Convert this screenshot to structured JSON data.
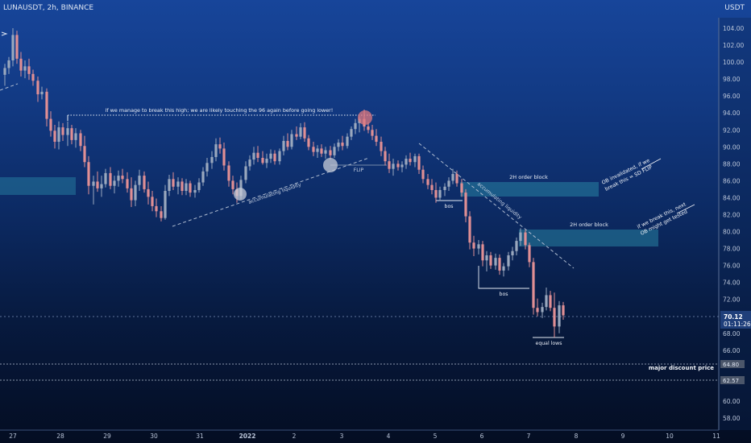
{
  "header": {
    "symbol": "LUNAUSDT, 2h, BINANCE",
    "currency": "USDT"
  },
  "chart_data": {
    "type": "candlestick",
    "y_ticks": [
      104,
      102,
      100,
      98,
      96,
      94,
      92,
      90,
      88,
      86,
      84,
      82,
      80,
      78,
      76,
      74,
      72,
      68,
      66,
      60,
      58
    ],
    "y_tick_labels": [
      "104.00",
      "102.00",
      "100.00",
      "98.00",
      "96.00",
      "94.00",
      "92.00",
      "90.00",
      "88.00",
      "86.00",
      "84.00",
      "82.00",
      "80.00",
      "78.00",
      "76.00",
      "74.00",
      "72.00",
      "68.00",
      "66.00",
      "60.00",
      "58.00"
    ],
    "ylim": [
      56.5,
      105.5
    ],
    "x_labels": [
      "27",
      "28",
      "29",
      "30",
      "31",
      "2022",
      "2",
      "3",
      "4",
      "5",
      "6",
      "7",
      "8",
      "9",
      "10",
      "11"
    ],
    "current_price": {
      "price": "70.12",
      "countdown": "01:11:26",
      "value": 70.12
    },
    "discount_levels": [
      {
        "label": "64.80",
        "value": 64.8
      },
      {
        "label": "62.57",
        "value": 62.57
      }
    ],
    "annotations": {
      "high_note": "if we manage to break this high; we are likely touching the 96 again before going lower!",
      "accum_left": "accumulating liquidity",
      "accum_right": "accumulating liquidity",
      "flip": "FLIP",
      "ob1": "2H order block",
      "ob2": "2H order block",
      "bos1": "bos",
      "bos2": "bos",
      "equal_lows": "equal lows",
      "major_discount": "major discount price",
      "note_top_1": "OB invalidated, if we",
      "note_top_2": "break this = SD FLIP",
      "note_mid_1": "if we break this, next",
      "note_mid_2": "OB might get tested"
    },
    "colors": {
      "up": "#9aa8be",
      "down": "#e08f94",
      "zone": "#2a8aa8",
      "bg_top": "#17459a",
      "bg_bottom": "#040d22"
    },
    "candles": [
      {
        "x": 6,
        "o": 98.5,
        "h": 99.8,
        "l": 97.2,
        "c": 99.3
      },
      {
        "x": 11,
        "o": 99.3,
        "h": 100.6,
        "l": 98.6,
        "c": 100.2
      },
      {
        "x": 16,
        "o": 100.2,
        "h": 104.0,
        "l": 99.5,
        "c": 103.2
      },
      {
        "x": 21,
        "o": 103.2,
        "h": 103.7,
        "l": 99.8,
        "c": 100.4
      },
      {
        "x": 26,
        "o": 100.4,
        "h": 101.2,
        "l": 98.3,
        "c": 99.0
      },
      {
        "x": 31,
        "o": 99.0,
        "h": 100.2,
        "l": 98.1,
        "c": 99.5
      },
      {
        "x": 36,
        "o": 99.5,
        "h": 100.4,
        "l": 97.9,
        "c": 98.6
      },
      {
        "x": 41,
        "o": 98.6,
        "h": 99.1,
        "l": 97.2,
        "c": 97.8
      },
      {
        "x": 47,
        "o": 97.8,
        "h": 98.3,
        "l": 95.3,
        "c": 96.2
      },
      {
        "x": 52,
        "o": 96.2,
        "h": 97.1,
        "l": 95.6,
        "c": 96.5
      },
      {
        "x": 58,
        "o": 96.5,
        "h": 96.9,
        "l": 92.4,
        "c": 93.3
      },
      {
        "x": 63,
        "o": 93.3,
        "h": 94.2,
        "l": 91.2,
        "c": 91.9
      },
      {
        "x": 68,
        "o": 91.9,
        "h": 92.6,
        "l": 89.8,
        "c": 90.6
      },
      {
        "x": 73,
        "o": 90.6,
        "h": 93.0,
        "l": 89.7,
        "c": 92.3
      },
      {
        "x": 78,
        "o": 92.3,
        "h": 92.8,
        "l": 90.7,
        "c": 91.4
      },
      {
        "x": 84,
        "o": 91.4,
        "h": 93.0,
        "l": 90.1,
        "c": 92.2
      },
      {
        "x": 89,
        "o": 92.2,
        "h": 92.6,
        "l": 90.3,
        "c": 90.8
      },
      {
        "x": 94,
        "o": 90.8,
        "h": 92.2,
        "l": 89.9,
        "c": 91.6
      },
      {
        "x": 100,
        "o": 91.6,
        "h": 92.0,
        "l": 89.5,
        "c": 90.1
      },
      {
        "x": 105,
        "o": 90.1,
        "h": 91.3,
        "l": 87.6,
        "c": 88.2
      },
      {
        "x": 110,
        "o": 88.2,
        "h": 88.9,
        "l": 84.4,
        "c": 85.4
      },
      {
        "x": 116,
        "o": 85.4,
        "h": 86.6,
        "l": 83.2,
        "c": 85.9
      },
      {
        "x": 121,
        "o": 85.9,
        "h": 87.1,
        "l": 84.7,
        "c": 85.1
      },
      {
        "x": 126,
        "o": 85.1,
        "h": 86.6,
        "l": 84.1,
        "c": 85.6
      },
      {
        "x": 131,
        "o": 85.6,
        "h": 87.4,
        "l": 85.2,
        "c": 86.9
      },
      {
        "x": 137,
        "o": 86.9,
        "h": 87.6,
        "l": 85.0,
        "c": 85.4
      },
      {
        "x": 142,
        "o": 85.4,
        "h": 86.6,
        "l": 84.5,
        "c": 86.0
      },
      {
        "x": 147,
        "o": 86.0,
        "h": 87.2,
        "l": 85.3,
        "c": 86.6
      },
      {
        "x": 152,
        "o": 86.6,
        "h": 87.4,
        "l": 85.7,
        "c": 86.2
      },
      {
        "x": 158,
        "o": 86.2,
        "h": 87.0,
        "l": 84.6,
        "c": 85.1
      },
      {
        "x": 163,
        "o": 85.1,
        "h": 86.4,
        "l": 82.9,
        "c": 83.7
      },
      {
        "x": 168,
        "o": 83.7,
        "h": 86.0,
        "l": 83.0,
        "c": 85.5
      },
      {
        "x": 173,
        "o": 85.5,
        "h": 87.3,
        "l": 84.8,
        "c": 86.6
      },
      {
        "x": 179,
        "o": 86.6,
        "h": 87.1,
        "l": 84.6,
        "c": 85.0
      },
      {
        "x": 184,
        "o": 85.0,
        "h": 85.9,
        "l": 83.2,
        "c": 84.1
      },
      {
        "x": 189,
        "o": 84.1,
        "h": 84.8,
        "l": 82.4,
        "c": 83.0
      },
      {
        "x": 194,
        "o": 83.0,
        "h": 83.9,
        "l": 81.7,
        "c": 82.4
      },
      {
        "x": 200,
        "o": 82.4,
        "h": 83.0,
        "l": 81.2,
        "c": 81.6
      },
      {
        "x": 205,
        "o": 81.6,
        "h": 85.5,
        "l": 81.4,
        "c": 84.8
      },
      {
        "x": 210,
        "o": 84.8,
        "h": 86.7,
        "l": 84.2,
        "c": 86.2
      },
      {
        "x": 215,
        "o": 86.2,
        "h": 87.0,
        "l": 84.9,
        "c": 85.3
      },
      {
        "x": 221,
        "o": 85.3,
        "h": 86.4,
        "l": 84.4,
        "c": 85.9
      },
      {
        "x": 226,
        "o": 85.9,
        "h": 86.3,
        "l": 84.3,
        "c": 84.8
      },
      {
        "x": 231,
        "o": 84.8,
        "h": 86.2,
        "l": 84.3,
        "c": 85.7
      },
      {
        "x": 236,
        "o": 85.7,
        "h": 86.0,
        "l": 84.1,
        "c": 84.6
      },
      {
        "x": 242,
        "o": 84.6,
        "h": 85.5,
        "l": 84.0,
        "c": 84.9
      },
      {
        "x": 247,
        "o": 84.9,
        "h": 86.3,
        "l": 84.6,
        "c": 85.8
      },
      {
        "x": 252,
        "o": 85.8,
        "h": 87.6,
        "l": 85.4,
        "c": 87.1
      },
      {
        "x": 257,
        "o": 87.1,
        "h": 88.7,
        "l": 86.5,
        "c": 88.1
      },
      {
        "x": 263,
        "o": 88.1,
        "h": 89.5,
        "l": 87.4,
        "c": 88.8
      },
      {
        "x": 268,
        "o": 88.8,
        "h": 91.0,
        "l": 88.3,
        "c": 90.3
      },
      {
        "x": 273,
        "o": 90.3,
        "h": 91.1,
        "l": 89.2,
        "c": 89.8
      },
      {
        "x": 278,
        "o": 89.8,
        "h": 90.5,
        "l": 87.2,
        "c": 87.8
      },
      {
        "x": 284,
        "o": 87.8,
        "h": 88.3,
        "l": 85.3,
        "c": 86.0
      },
      {
        "x": 289,
        "o": 86.0,
        "h": 86.6,
        "l": 84.4,
        "c": 85.0
      },
      {
        "x": 294,
        "o": 85.0,
        "h": 85.8,
        "l": 83.4,
        "c": 84.2
      },
      {
        "x": 299,
        "o": 84.2,
        "h": 86.6,
        "l": 83.8,
        "c": 86.1
      },
      {
        "x": 305,
        "o": 86.1,
        "h": 88.3,
        "l": 85.7,
        "c": 87.7
      },
      {
        "x": 310,
        "o": 87.7,
        "h": 89.0,
        "l": 87.2,
        "c": 88.5
      },
      {
        "x": 315,
        "o": 88.5,
        "h": 90.0,
        "l": 87.9,
        "c": 89.3
      },
      {
        "x": 320,
        "o": 89.3,
        "h": 90.1,
        "l": 88.2,
        "c": 88.7
      },
      {
        "x": 326,
        "o": 88.7,
        "h": 89.5,
        "l": 87.9,
        "c": 88.1
      },
      {
        "x": 331,
        "o": 88.1,
        "h": 89.2,
        "l": 87.5,
        "c": 88.6
      },
      {
        "x": 336,
        "o": 88.6,
        "h": 89.7,
        "l": 88.1,
        "c": 89.2
      },
      {
        "x": 341,
        "o": 89.2,
        "h": 89.6,
        "l": 87.9,
        "c": 88.3
      },
      {
        "x": 347,
        "o": 88.3,
        "h": 89.8,
        "l": 87.9,
        "c": 89.5
      },
      {
        "x": 352,
        "o": 89.5,
        "h": 91.3,
        "l": 89.0,
        "c": 90.7
      },
      {
        "x": 357,
        "o": 90.7,
        "h": 91.6,
        "l": 89.6,
        "c": 90.0
      },
      {
        "x": 362,
        "o": 90.0,
        "h": 92.0,
        "l": 89.7,
        "c": 91.5
      },
      {
        "x": 368,
        "o": 91.5,
        "h": 92.4,
        "l": 90.8,
        "c": 91.2
      },
      {
        "x": 373,
        "o": 91.2,
        "h": 92.8,
        "l": 90.9,
        "c": 92.3
      },
      {
        "x": 378,
        "o": 92.3,
        "h": 92.9,
        "l": 90.6,
        "c": 91.0
      },
      {
        "x": 383,
        "o": 91.0,
        "h": 91.4,
        "l": 89.6,
        "c": 90.0
      },
      {
        "x": 389,
        "o": 90.0,
        "h": 90.6,
        "l": 88.9,
        "c": 89.4
      },
      {
        "x": 394,
        "o": 89.4,
        "h": 90.2,
        "l": 88.7,
        "c": 89.8
      },
      {
        "x": 399,
        "o": 89.8,
        "h": 90.3,
        "l": 88.8,
        "c": 89.2
      },
      {
        "x": 404,
        "o": 89.2,
        "h": 90.0,
        "l": 88.6,
        "c": 89.6
      },
      {
        "x": 410,
        "o": 89.6,
        "h": 90.1,
        "l": 88.5,
        "c": 89.0
      },
      {
        "x": 415,
        "o": 89.0,
        "h": 90.4,
        "l": 88.7,
        "c": 90.0
      },
      {
        "x": 420,
        "o": 90.0,
        "h": 90.9,
        "l": 89.5,
        "c": 90.5
      },
      {
        "x": 425,
        "o": 90.5,
        "h": 91.3,
        "l": 89.6,
        "c": 90.1
      },
      {
        "x": 431,
        "o": 90.1,
        "h": 91.6,
        "l": 89.8,
        "c": 91.2
      },
      {
        "x": 436,
        "o": 91.2,
        "h": 92.4,
        "l": 90.8,
        "c": 92.1
      },
      {
        "x": 441,
        "o": 92.1,
        "h": 93.3,
        "l": 91.5,
        "c": 92.8
      },
      {
        "x": 446,
        "o": 92.8,
        "h": 93.6,
        "l": 91.7,
        "c": 93.3
      },
      {
        "x": 452,
        "o": 93.3,
        "h": 94.4,
        "l": 91.9,
        "c": 92.4
      },
      {
        "x": 457,
        "o": 92.4,
        "h": 92.9,
        "l": 91.6,
        "c": 92.0
      },
      {
        "x": 462,
        "o": 92.0,
        "h": 92.6,
        "l": 90.8,
        "c": 91.3
      },
      {
        "x": 467,
        "o": 91.3,
        "h": 92.1,
        "l": 90.1,
        "c": 90.6
      },
      {
        "x": 473,
        "o": 90.6,
        "h": 91.2,
        "l": 88.9,
        "c": 89.5
      },
      {
        "x": 478,
        "o": 89.5,
        "h": 90.0,
        "l": 87.8,
        "c": 88.3
      },
      {
        "x": 483,
        "o": 88.3,
        "h": 89.2,
        "l": 86.9,
        "c": 87.4
      },
      {
        "x": 488,
        "o": 87.4,
        "h": 88.6,
        "l": 86.6,
        "c": 88.0
      },
      {
        "x": 494,
        "o": 88.0,
        "h": 88.4,
        "l": 87.2,
        "c": 87.6
      },
      {
        "x": 499,
        "o": 87.6,
        "h": 88.3,
        "l": 87.0,
        "c": 87.9
      },
      {
        "x": 504,
        "o": 87.9,
        "h": 89.0,
        "l": 87.4,
        "c": 88.6
      },
      {
        "x": 509,
        "o": 88.6,
        "h": 89.3,
        "l": 87.8,
        "c": 88.2
      },
      {
        "x": 515,
        "o": 88.2,
        "h": 89.2,
        "l": 87.6,
        "c": 88.9
      },
      {
        "x": 520,
        "o": 88.9,
        "h": 89.2,
        "l": 86.8,
        "c": 87.3
      },
      {
        "x": 525,
        "o": 87.3,
        "h": 87.8,
        "l": 85.7,
        "c": 86.2
      },
      {
        "x": 531,
        "o": 86.2,
        "h": 86.8,
        "l": 85.0,
        "c": 85.5
      },
      {
        "x": 536,
        "o": 85.5,
        "h": 86.2,
        "l": 84.4,
        "c": 84.9
      },
      {
        "x": 541,
        "o": 84.9,
        "h": 85.8,
        "l": 83.4,
        "c": 84.0
      },
      {
        "x": 546,
        "o": 84.0,
        "h": 85.3,
        "l": 83.6,
        "c": 84.9
      },
      {
        "x": 552,
        "o": 84.9,
        "h": 85.7,
        "l": 84.2,
        "c": 85.3
      },
      {
        "x": 557,
        "o": 85.3,
        "h": 86.4,
        "l": 84.8,
        "c": 86.0
      },
      {
        "x": 562,
        "o": 86.0,
        "h": 87.4,
        "l": 85.6,
        "c": 86.8
      },
      {
        "x": 567,
        "o": 86.8,
        "h": 87.2,
        "l": 85.3,
        "c": 85.7
      },
      {
        "x": 573,
        "o": 85.7,
        "h": 86.2,
        "l": 84.1,
        "c": 84.6
      },
      {
        "x": 578,
        "o": 84.6,
        "h": 85.0,
        "l": 81.1,
        "c": 81.8
      },
      {
        "x": 583,
        "o": 81.8,
        "h": 82.4,
        "l": 77.9,
        "c": 78.7
      },
      {
        "x": 588,
        "o": 78.7,
        "h": 79.5,
        "l": 77.1,
        "c": 78.0
      },
      {
        "x": 594,
        "o": 78.0,
        "h": 79.0,
        "l": 77.3,
        "c": 78.5
      },
      {
        "x": 599,
        "o": 78.5,
        "h": 78.9,
        "l": 75.9,
        "c": 76.6
      },
      {
        "x": 604,
        "o": 76.6,
        "h": 77.7,
        "l": 75.3,
        "c": 77.2
      },
      {
        "x": 609,
        "o": 77.2,
        "h": 77.6,
        "l": 75.6,
        "c": 76.0
      },
      {
        "x": 615,
        "o": 76.0,
        "h": 77.4,
        "l": 75.5,
        "c": 76.9
      },
      {
        "x": 620,
        "o": 76.9,
        "h": 77.3,
        "l": 74.9,
        "c": 75.4
      },
      {
        "x": 625,
        "o": 75.4,
        "h": 76.3,
        "l": 74.7,
        "c": 75.9
      },
      {
        "x": 631,
        "o": 75.9,
        "h": 77.6,
        "l": 75.4,
        "c": 77.2
      },
      {
        "x": 636,
        "o": 77.2,
        "h": 78.2,
        "l": 76.6,
        "c": 77.7
      },
      {
        "x": 641,
        "o": 77.7,
        "h": 79.3,
        "l": 77.2,
        "c": 78.9
      },
      {
        "x": 646,
        "o": 78.9,
        "h": 80.4,
        "l": 78.3,
        "c": 79.9
      },
      {
        "x": 652,
        "o": 79.9,
        "h": 80.2,
        "l": 77.9,
        "c": 78.4
      },
      {
        "x": 657,
        "o": 78.4,
        "h": 78.7,
        "l": 75.8,
        "c": 76.4
      },
      {
        "x": 662,
        "o": 76.4,
        "h": 76.9,
        "l": 70.2,
        "c": 71.0
      },
      {
        "x": 667,
        "o": 71.0,
        "h": 72.1,
        "l": 70.0,
        "c": 70.5
      },
      {
        "x": 673,
        "o": 70.5,
        "h": 71.6,
        "l": 69.8,
        "c": 71.1
      },
      {
        "x": 678,
        "o": 71.1,
        "h": 73.4,
        "l": 70.7,
        "c": 72.5
      },
      {
        "x": 683,
        "o": 72.5,
        "h": 73.0,
        "l": 70.6,
        "c": 71.0
      },
      {
        "x": 688,
        "o": 71.0,
        "h": 72.8,
        "l": 67.5,
        "c": 68.8
      },
      {
        "x": 694,
        "o": 68.8,
        "h": 71.8,
        "l": 68.0,
        "c": 71.3
      },
      {
        "x": 699,
        "o": 71.3,
        "h": 71.7,
        "l": 69.6,
        "c": 70.12
      }
    ]
  }
}
